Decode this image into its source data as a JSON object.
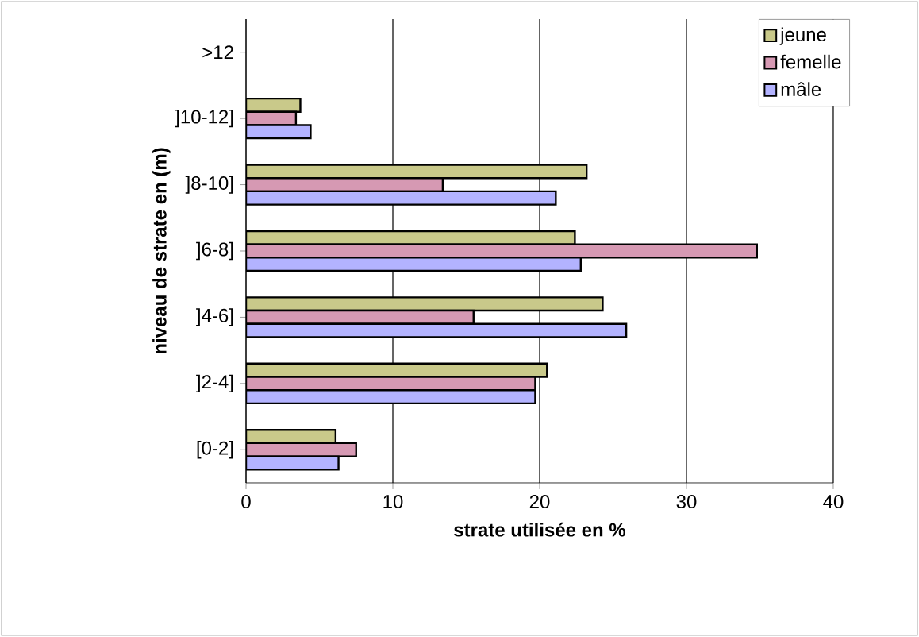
{
  "chart_data": {
    "type": "bar",
    "orientation": "horizontal",
    "xlabel": "strate utilisée en %",
    "ylabel": "niveau de strate en (m)",
    "categories": [
      ">12",
      "]10-12]",
      "]8-10]",
      "]6-8]",
      "]4-6]",
      "]2-4]",
      "[0-2]"
    ],
    "series": [
      {
        "name": "jeune",
        "color": "#c9c98a",
        "values": [
          null,
          3.7,
          23.2,
          22.4,
          24.3,
          20.5,
          6.1
        ]
      },
      {
        "name": "femelle",
        "color": "#d699b3",
        "values": [
          null,
          3.4,
          13.4,
          34.8,
          15.5,
          19.7,
          7.5
        ]
      },
      {
        "name": "mâle",
        "color": "#b3b3ff",
        "values": [
          null,
          4.4,
          21.1,
          22.8,
          25.9,
          19.7,
          6.3
        ]
      }
    ],
    "xlim": [
      0,
      40
    ],
    "xticks": [
      0,
      10,
      20,
      30,
      40
    ],
    "grid": "x",
    "legend": "top right"
  }
}
